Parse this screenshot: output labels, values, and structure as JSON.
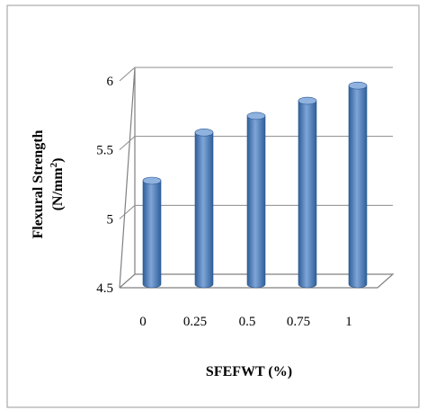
{
  "chart_data": {
    "type": "bar",
    "style": "3d-cylinder",
    "categories": [
      "0",
      "0.25",
      "0.5",
      "0.75",
      "1"
    ],
    "values": [
      5.25,
      5.6,
      5.72,
      5.83,
      5.94
    ],
    "y_ticks": [
      "4.5",
      "5",
      "5.5",
      "6"
    ],
    "ylim": [
      4.5,
      6
    ],
    "grid": true,
    "legend": "none",
    "ylabel_line1": "Flexural Strength",
    "ylabel_line2": "(N/mm",
    "ylabel_superscript": "2",
    "ylabel_close": ")",
    "xlabel": "SFEFWT (%)",
    "bar_color": "#4a7ebf",
    "bar_dark": "#2f5f9a",
    "bar_light": "#7fa6d8"
  }
}
